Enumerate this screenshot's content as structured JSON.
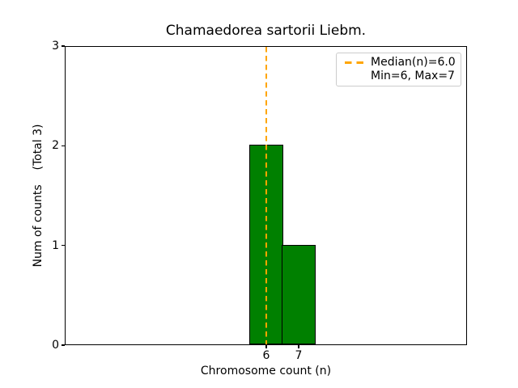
{
  "chart": {
    "title": "Chamaedorea sartorii Liebm.",
    "xlabel": "Chromosome count (n)",
    "ylabel": "Num of counts    (Total 3)"
  },
  "legend": {
    "items": [
      {
        "label": "Median(n)=6.0"
      },
      {
        "label": "Min=6, Max=7"
      }
    ],
    "position": "upper right"
  },
  "chart_data": {
    "type": "bar",
    "categories": [
      6,
      7
    ],
    "values": [
      2,
      1
    ],
    "title": "Chamaedorea sartorii Liebm.",
    "xlabel": "Chromosome count (n)",
    "ylabel": "Num of counts    (Total 3)",
    "total_counts": 3,
    "median": 6.0,
    "min": 6,
    "max": 7,
    "x_ticks": [
      6,
      7
    ],
    "y_ticks": [
      0,
      1,
      2,
      3
    ],
    "xlim": [
      -0.225,
      12.2
    ],
    "ylim": [
      0,
      3
    ],
    "bin_width": 1.05,
    "grid": false,
    "legend_position": "upper right",
    "bar_color": "#008000",
    "bar_edge_color": "#000000",
    "median_line_color": "#FFA500"
  }
}
